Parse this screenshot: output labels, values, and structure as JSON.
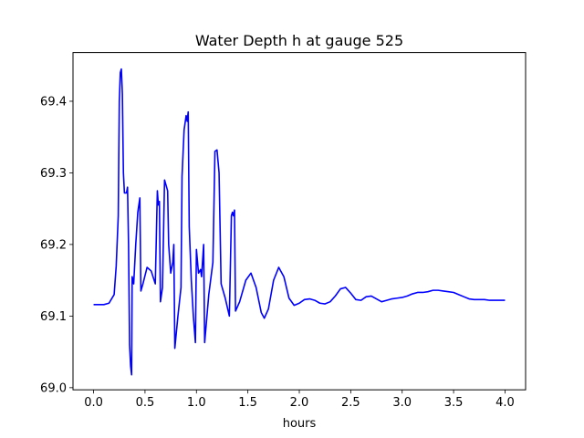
{
  "chart_data": {
    "type": "line",
    "title": "Water Depth h at gauge 525",
    "xlabel": "hours",
    "ylabel": "",
    "xlim": [
      -0.2,
      4.2
    ],
    "ylim": [
      68.997,
      69.468
    ],
    "xticks": [
      0.0,
      0.5,
      1.0,
      1.5,
      2.0,
      2.5,
      3.0,
      3.5,
      4.0
    ],
    "xtick_labels": [
      "0.0",
      "0.5",
      "1.0",
      "1.5",
      "2.0",
      "2.5",
      "3.0",
      "3.5",
      "4.0"
    ],
    "yticks": [
      69.0,
      69.1,
      69.2,
      69.3,
      69.4
    ],
    "ytick_labels": [
      "69.0",
      "69.1",
      "69.2",
      "69.3",
      "69.4"
    ],
    "grid": false,
    "legend": "none",
    "series": [
      {
        "color": "#0000ff",
        "points": [
          [
            0.0,
            69.116
          ],
          [
            0.1,
            69.116
          ],
          [
            0.15,
            69.118
          ],
          [
            0.2,
            69.13
          ],
          [
            0.22,
            69.17
          ],
          [
            0.24,
            69.24
          ],
          [
            0.25,
            69.4
          ],
          [
            0.26,
            69.44
          ],
          [
            0.27,
            69.445
          ],
          [
            0.28,
            69.41
          ],
          [
            0.29,
            69.3
          ],
          [
            0.3,
            69.272
          ],
          [
            0.32,
            69.272
          ],
          [
            0.33,
            69.28
          ],
          [
            0.34,
            69.2
          ],
          [
            0.35,
            69.06
          ],
          [
            0.36,
            69.03
          ],
          [
            0.37,
            69.018
          ],
          [
            0.375,
            69.155
          ],
          [
            0.39,
            69.145
          ],
          [
            0.41,
            69.2
          ],
          [
            0.43,
            69.245
          ],
          [
            0.45,
            69.265
          ],
          [
            0.46,
            69.135
          ],
          [
            0.48,
            69.145
          ],
          [
            0.52,
            69.168
          ],
          [
            0.56,
            69.163
          ],
          [
            0.6,
            69.145
          ],
          [
            0.62,
            69.275
          ],
          [
            0.63,
            69.255
          ],
          [
            0.64,
            69.26
          ],
          [
            0.65,
            69.12
          ],
          [
            0.67,
            69.14
          ],
          [
            0.69,
            69.29
          ],
          [
            0.72,
            69.275
          ],
          [
            0.73,
            69.2
          ],
          [
            0.75,
            69.16
          ],
          [
            0.77,
            69.175
          ],
          [
            0.78,
            69.2
          ],
          [
            0.79,
            69.055
          ],
          [
            0.82,
            69.1
          ],
          [
            0.85,
            69.14
          ],
          [
            0.86,
            69.295
          ],
          [
            0.88,
            69.36
          ],
          [
            0.9,
            69.38
          ],
          [
            0.91,
            69.372
          ],
          [
            0.92,
            69.385
          ],
          [
            0.93,
            69.225
          ],
          [
            0.95,
            69.15
          ],
          [
            0.97,
            69.1
          ],
          [
            0.99,
            69.063
          ],
          [
            1.0,
            69.193
          ],
          [
            1.02,
            69.16
          ],
          [
            1.04,
            69.165
          ],
          [
            1.05,
            69.155
          ],
          [
            1.07,
            69.2
          ],
          [
            1.08,
            69.063
          ],
          [
            1.12,
            69.13
          ],
          [
            1.16,
            69.175
          ],
          [
            1.18,
            69.33
          ],
          [
            1.2,
            69.332
          ],
          [
            1.22,
            69.3
          ],
          [
            1.24,
            69.145
          ],
          [
            1.28,
            69.125
          ],
          [
            1.32,
            69.1
          ],
          [
            1.34,
            69.24
          ],
          [
            1.35,
            69.245
          ],
          [
            1.36,
            69.24
          ],
          [
            1.37,
            69.248
          ],
          [
            1.38,
            69.107
          ],
          [
            1.42,
            69.12
          ],
          [
            1.48,
            69.15
          ],
          [
            1.53,
            69.16
          ],
          [
            1.58,
            69.14
          ],
          [
            1.63,
            69.105
          ],
          [
            1.66,
            69.097
          ],
          [
            1.7,
            69.11
          ],
          [
            1.75,
            69.15
          ],
          [
            1.8,
            69.168
          ],
          [
            1.85,
            69.155
          ],
          [
            1.9,
            69.125
          ],
          [
            1.95,
            69.115
          ],
          [
            2.0,
            69.118
          ],
          [
            2.05,
            69.123
          ],
          [
            2.1,
            69.124
          ],
          [
            2.15,
            69.122
          ],
          [
            2.2,
            69.118
          ],
          [
            2.25,
            69.117
          ],
          [
            2.3,
            69.12
          ],
          [
            2.35,
            69.128
          ],
          [
            2.4,
            69.138
          ],
          [
            2.45,
            69.14
          ],
          [
            2.5,
            69.132
          ],
          [
            2.55,
            69.123
          ],
          [
            2.6,
            69.122
          ],
          [
            2.65,
            69.127
          ],
          [
            2.7,
            69.128
          ],
          [
            2.75,
            69.124
          ],
          [
            2.8,
            69.12
          ],
          [
            2.85,
            69.122
          ],
          [
            2.9,
            69.124
          ],
          [
            2.95,
            69.125
          ],
          [
            3.0,
            69.126
          ],
          [
            3.05,
            69.128
          ],
          [
            3.1,
            69.131
          ],
          [
            3.15,
            69.133
          ],
          [
            3.2,
            69.133
          ],
          [
            3.25,
            69.134
          ],
          [
            3.3,
            69.136
          ],
          [
            3.35,
            69.136
          ],
          [
            3.4,
            69.135
          ],
          [
            3.45,
            69.134
          ],
          [
            3.5,
            69.133
          ],
          [
            3.55,
            69.13
          ],
          [
            3.6,
            69.127
          ],
          [
            3.65,
            69.124
          ],
          [
            3.7,
            69.123
          ],
          [
            3.75,
            69.123
          ],
          [
            3.8,
            69.123
          ],
          [
            3.85,
            69.122
          ],
          [
            3.9,
            69.122
          ],
          [
            3.95,
            69.122
          ],
          [
            4.0,
            69.122
          ]
        ]
      }
    ]
  }
}
